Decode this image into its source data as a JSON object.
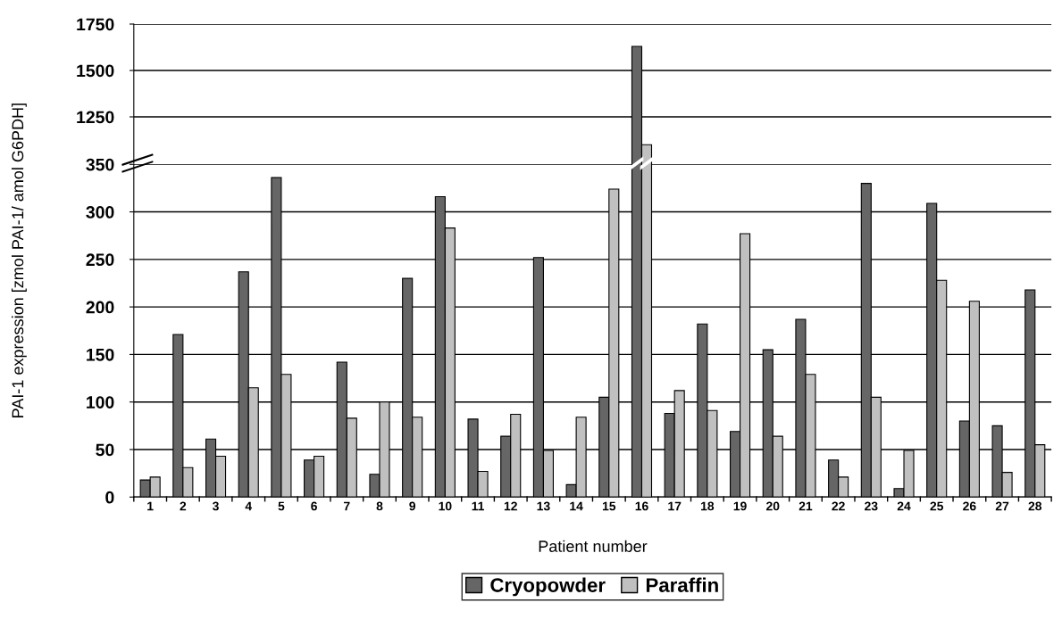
{
  "chart_data": [
    {
      "type": "bar",
      "ylabel": "PAI-1 expression [zmol PAI-1/ amol G6PDH]",
      "categories": [
        "1",
        "2",
        "3",
        "4",
        "5",
        "6",
        "7",
        "8",
        "9",
        "10",
        "11",
        "12",
        "13",
        "14",
        "15",
        "16",
        "17",
        "18",
        "19",
        "20",
        "21",
        "22",
        "23",
        "24",
        "25",
        "26",
        "27",
        "28"
      ],
      "series": [
        {
          "color": "#666666",
          "values": [
            null,
            null,
            null,
            null,
            null,
            null,
            null,
            null,
            null,
            null,
            null,
            null,
            null,
            null,
            null,
            1630,
            null,
            null,
            null,
            null,
            null,
            null,
            null,
            null,
            null,
            null,
            null,
            null
          ]
        },
        {
          "color": "#c0c0c0",
          "values": [
            null,
            null,
            null,
            null,
            null,
            null,
            null,
            null,
            null,
            null,
            null,
            null,
            null,
            null,
            null,
            1100,
            null,
            null,
            null,
            null,
            null,
            null,
            null,
            null,
            null,
            null,
            null,
            null
          ]
        }
      ],
      "ylim": [
        1000,
        1750
      ],
      "yticks": [
        1250,
        1500,
        1750
      ],
      "grid": "y",
      "tick_labels": "y"
    },
    {
      "type": "bar",
      "xlabel": "Patient number",
      "categories": [
        "1",
        "2",
        "3",
        "4",
        "5",
        "6",
        "7",
        "8",
        "9",
        "10",
        "11",
        "12",
        "13",
        "14",
        "15",
        "16",
        "17",
        "18",
        "19",
        "20",
        "21",
        "22",
        "23",
        "24",
        "25",
        "26",
        "27",
        "28"
      ],
      "series": [
        {
          "name": "Cryopowder",
          "color": "#666666",
          "values": [
            18,
            171,
            61,
            237,
            336,
            39,
            142,
            24,
            230,
            316,
            82,
            64,
            252,
            13,
            105,
            null,
            88,
            182,
            69,
            155,
            187,
            39,
            330,
            9,
            309,
            80,
            75,
            218
          ]
        },
        {
          "name": "Paraffin",
          "color": "#c0c0c0",
          "values": [
            21,
            31,
            43,
            115,
            129,
            43,
            83,
            100,
            84,
            283,
            27,
            87,
            49,
            84,
            324,
            null,
            112,
            91,
            277,
            64,
            129,
            21,
            105,
            49,
            228,
            206,
            26,
            55
          ]
        }
      ],
      "ylim": [
        0,
        350
      ],
      "yticks": [
        0,
        50,
        100,
        150,
        200,
        250,
        300,
        350
      ],
      "grid": "y",
      "legend": "bottom"
    }
  ]
}
